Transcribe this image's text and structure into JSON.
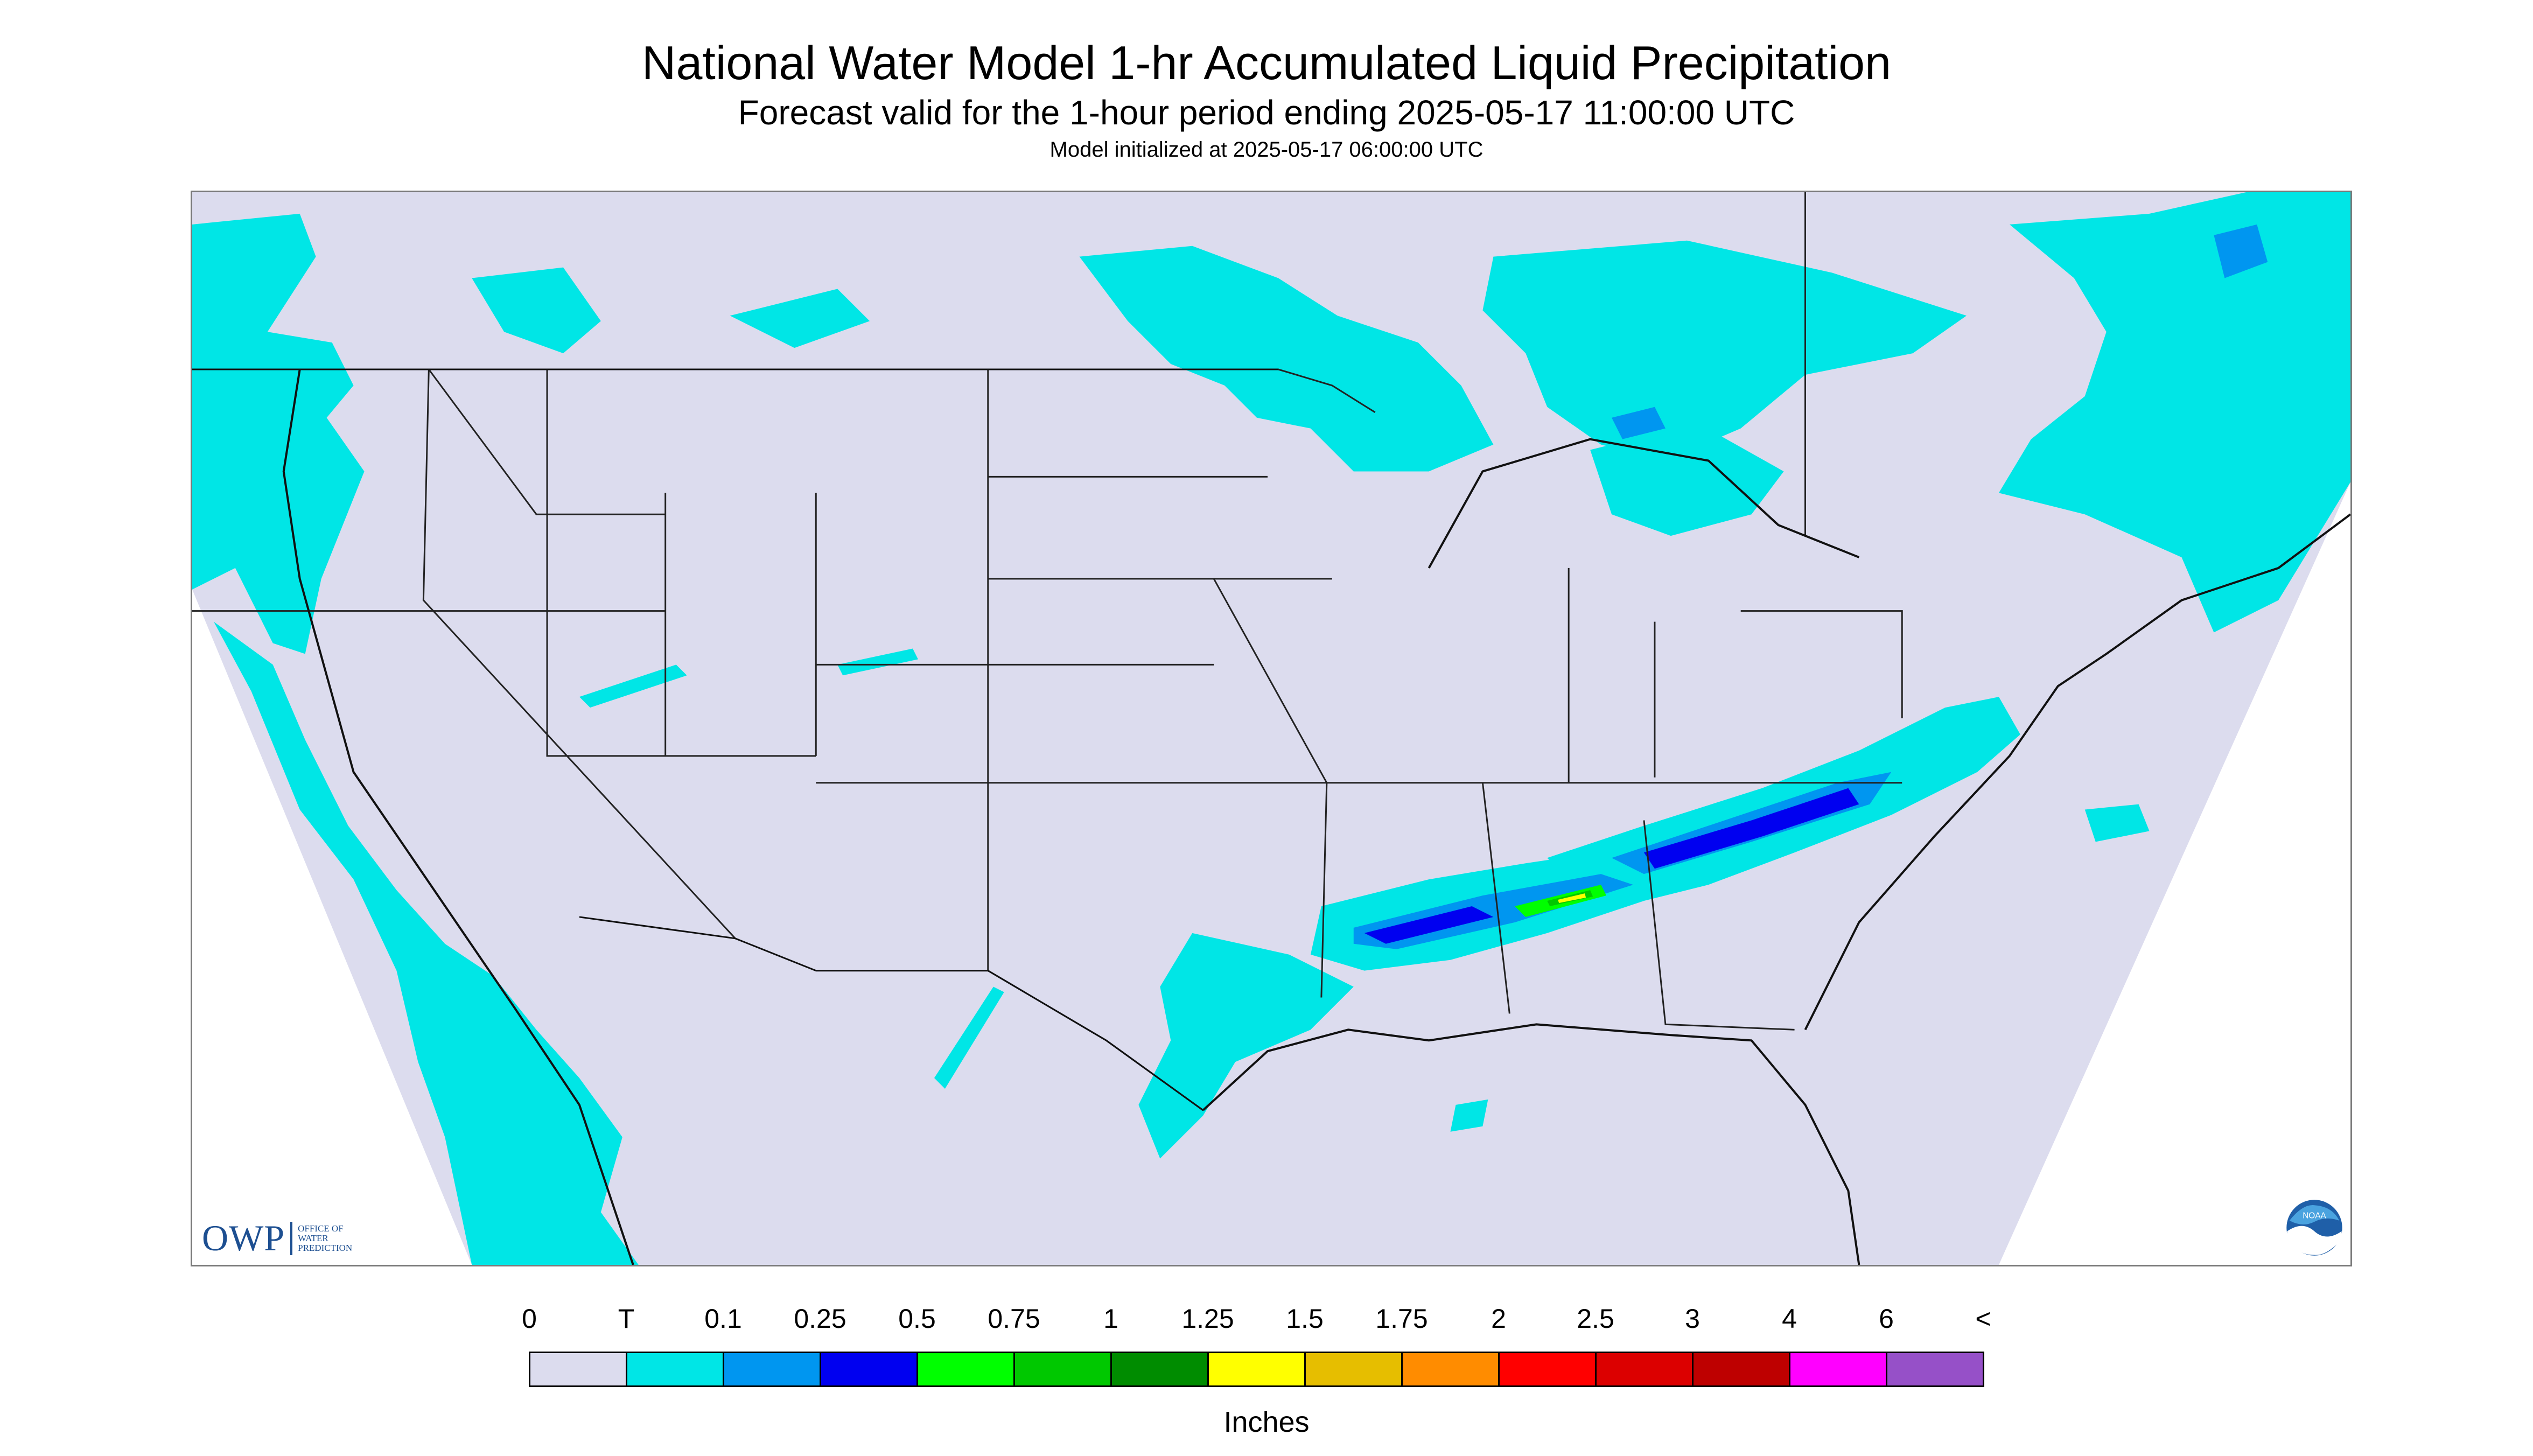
{
  "header": {
    "title": "National Water Model 1-hr Accumulated Liquid Precipitation",
    "subtitle": "Forecast valid for the 1-hour period ending 2025-05-17 11:00:00 UTC",
    "init_line": "Model initialized at 2025-05-17 06:00:00 UTC"
  },
  "map": {
    "background_color": "#dcdcee",
    "outside_color": "#ffffff",
    "boundary_color": "#222222",
    "logos": {
      "owp": {
        "text": "OWP",
        "subtext": [
          "OFFICE OF",
          "WATER",
          "PREDICTION"
        ]
      },
      "noaa": {
        "text": "NOAA",
        "icon": "noaa-logo-icon"
      }
    },
    "precip_features": [
      {
        "region": "Pacific Northwest coast",
        "category": "T"
      },
      {
        "region": "California coast / offshore",
        "category": "T"
      },
      {
        "region": "Upper Midwest / Great Lakes",
        "category": "T"
      },
      {
        "region": "Lake Superior band",
        "category": "0.1"
      },
      {
        "region": "Ohio Valley to Mid-Atlantic band",
        "category": "0.25"
      },
      {
        "region": "Mississippi / Alabama band",
        "category": "0.75"
      },
      {
        "region": "Texas Gulf coast",
        "category": "T"
      },
      {
        "region": "New England / Atlantic offshore",
        "category": "T"
      },
      {
        "region": "Quebec / Maine",
        "category": "0.1"
      }
    ]
  },
  "legend": {
    "labels": [
      "0",
      "T",
      "0.1",
      "0.25",
      "0.5",
      "0.75",
      "1",
      "1.25",
      "1.5",
      "1.75",
      "2",
      "2.5",
      "3",
      "4",
      "6",
      "<"
    ],
    "colors": [
      "#dcdcee",
      "#00e6e6",
      "#0096f0",
      "#0000f0",
      "#00ff00",
      "#00c800",
      "#008c00",
      "#ffff00",
      "#e6be00",
      "#ff8c00",
      "#ff0000",
      "#dc0000",
      "#be0000",
      "#ff00ff",
      "#9650c8"
    ],
    "units": "Inches"
  }
}
